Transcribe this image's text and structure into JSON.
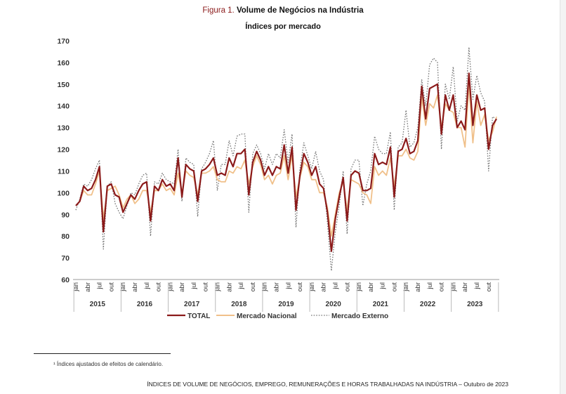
{
  "figure": {
    "label": "Figura 1.",
    "title": "Volume de Negócios na Indústria",
    "subtitle": "Índices por mercado"
  },
  "chart_data": {
    "type": "line",
    "ylim": [
      60,
      170
    ],
    "yticks": [
      60,
      70,
      80,
      90,
      100,
      110,
      120,
      130,
      140,
      150,
      160,
      170
    ],
    "month_labels": [
      "jan",
      "abr",
      "jul",
      "out"
    ],
    "years": [
      "2015",
      "2016",
      "2017",
      "2018",
      "2019",
      "2020",
      "2021",
      "2022",
      "2023"
    ],
    "x_start": "2015-01",
    "x_end": "2023-10",
    "legend_position": "bottom",
    "series": [
      {
        "name": "TOTAL",
        "color": "#8b1a1a",
        "style": "solid",
        "values": [
          94,
          96,
          103,
          101,
          102,
          106,
          112,
          82,
          103,
          104,
          99,
          98,
          91,
          95,
          99,
          97,
          101,
          104,
          105,
          87,
          103,
          101,
          106,
          103,
          104,
          101,
          116,
          98,
          113,
          111,
          110,
          96,
          110,
          111,
          113,
          116,
          108,
          109,
          108,
          116,
          112,
          118,
          118,
          120,
          99,
          114,
          119,
          115,
          108,
          112,
          108,
          112,
          111,
          122,
          109,
          121,
          92,
          108,
          118,
          114,
          108,
          112,
          104,
          102,
          91,
          73,
          88,
          98,
          107,
          87,
          108,
          110,
          109,
          101,
          101,
          102,
          118,
          113,
          114,
          113,
          121,
          98,
          119,
          120,
          125,
          118,
          119,
          124,
          149,
          134,
          148,
          149,
          150,
          127,
          145,
          138,
          145,
          130,
          133,
          129,
          155,
          131,
          145,
          138,
          139,
          120,
          131,
          134
        ]
      },
      {
        "name": "Mercado Nacional",
        "color": "#f0c08a",
        "style": "solid",
        "values": [
          94,
          96,
          101,
          99,
          99,
          104,
          110,
          88,
          101,
          102,
          103,
          99,
          93,
          97,
          99,
          95,
          97,
          101,
          101,
          91,
          101,
          101,
          104,
          101,
          102,
          99,
          109,
          100,
          110,
          108,
          107,
          99,
          109,
          109,
          110,
          112,
          106,
          105,
          105,
          110,
          109,
          112,
          111,
          115,
          104,
          112,
          117,
          113,
          106,
          108,
          104,
          108,
          109,
          117,
          106,
          117,
          98,
          107,
          114,
          112,
          106,
          106,
          100,
          100,
          93,
          80,
          90,
          100,
          105,
          92,
          106,
          105,
          104,
          100,
          99,
          95,
          112,
          108,
          110,
          108,
          116,
          103,
          117,
          117,
          120,
          116,
          115,
          119,
          144,
          131,
          141,
          139,
          145,
          130,
          141,
          138,
          137,
          130,
          130,
          121,
          150,
          123,
          142,
          131,
          136,
          124,
          128,
          135
        ]
      },
      {
        "name": "Mercado Externo",
        "color": "#777777",
        "style": "dotted",
        "values": [
          92,
          97,
          104,
          103,
          106,
          111,
          115,
          74,
          103,
          105,
          95,
          91,
          88,
          94,
          100,
          99,
          104,
          108,
          109,
          80,
          105,
          104,
          109,
          106,
          105,
          104,
          120,
          96,
          116,
          114,
          113,
          89,
          111,
          114,
          118,
          124,
          101,
          113,
          113,
          124,
          117,
          126,
          127,
          127,
          91,
          118,
          122,
          118,
          111,
          118,
          113,
          118,
          116,
          129,
          114,
          127,
          84,
          111,
          123,
          117,
          111,
          119,
          110,
          106,
          86,
          64,
          82,
          94,
          110,
          81,
          111,
          115,
          115,
          94,
          104,
          110,
          126,
          120,
          118,
          118,
          128,
          92,
          121,
          123,
          138,
          121,
          123,
          130,
          152,
          140,
          159,
          162,
          160,
          120,
          150,
          143,
          158,
          133,
          140,
          138,
          167,
          143,
          154,
          146,
          142,
          110,
          135,
          134
        ]
      }
    ]
  },
  "footnote": "¹ Índices ajustados de efeitos de calendário.",
  "footer": "ÍNDICES DE VOLUME DE NEGÓCIOS, EMPREGO, REMUNERAÇÕES E HORAS TRABALHADAS NA INDÚSTRIA – Outubro de 2023"
}
